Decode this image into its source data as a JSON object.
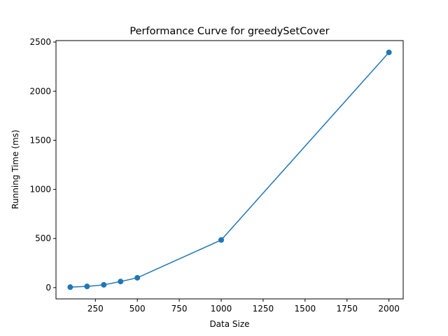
{
  "chart_data": {
    "type": "line",
    "title": "Performance Curve for greedySetCover",
    "xlabel": "Data Size",
    "ylabel": "Running Time (ms)",
    "xlim": [
      15,
      2085
    ],
    "ylim": [
      -115,
      2515
    ],
    "xticks": [
      250,
      500,
      750,
      1000,
      1250,
      1500,
      1750,
      2000
    ],
    "yticks": [
      0,
      500,
      1000,
      1500,
      2000,
      2500
    ],
    "grid": false,
    "legend": "none",
    "series": [
      {
        "color": "#1f77b4",
        "marker": "circle",
        "x": [
          100,
          200,
          300,
          400,
          500,
          1000,
          2000
        ],
        "y": [
          5,
          12,
          28,
          62,
          100,
          485,
          2395
        ]
      }
    ]
  }
}
